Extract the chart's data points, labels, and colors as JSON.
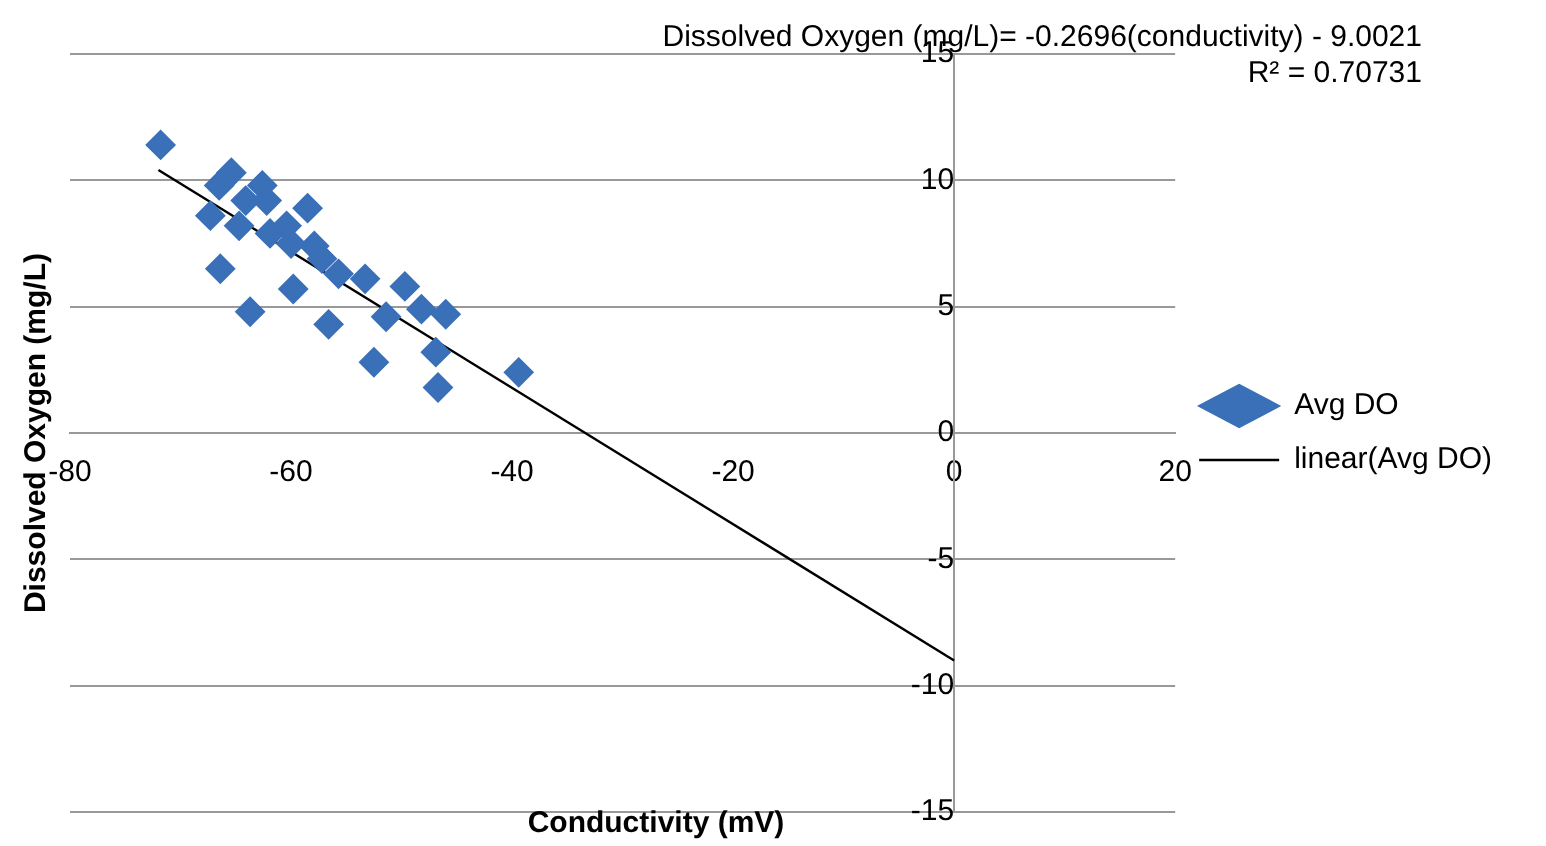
{
  "chart_data": {
    "type": "scatter",
    "xlabel": "Conductivity (mV)",
    "ylabel": "Dissolved Oxygen (mg/L)",
    "annotations": [
      "Dissolved Oxygen (mg/L)= -0.2696(conductivity) - 9.0021",
      "R² = 0.70731"
    ],
    "xlim": [
      -80,
      20
    ],
    "xticks": [
      -80,
      -60,
      -40,
      -20,
      0,
      20
    ],
    "ylim": [
      -15,
      15
    ],
    "yticks": [
      -15,
      -10,
      -5,
      0,
      5,
      10,
      15
    ],
    "grid": "y",
    "legend": "right",
    "series": [
      {
        "name": "Avg DO",
        "type": "scatter",
        "marker": "diamond",
        "color": "#3a70b8",
        "x": [
          -71.8,
          -65.4,
          -66.5,
          -62.6,
          -62.2,
          -64.1,
          -67.3,
          -64.7,
          -58.5,
          -61.9,
          -60.4,
          -60.0,
          -57.9,
          -57.2,
          -55.7,
          -66.4,
          -53.3,
          -49.7,
          -48.2,
          -46.0,
          -51.4,
          -59.8,
          -63.7,
          -56.6,
          -46.9,
          -52.5,
          -46.7,
          -39.4
        ],
        "values": [
          11.4,
          10.3,
          9.8,
          9.8,
          9.2,
          9.2,
          8.6,
          8.2,
          8.9,
          7.9,
          8.2,
          7.5,
          7.4,
          6.9,
          6.3,
          6.5,
          6.1,
          5.8,
          4.9,
          4.7,
          4.6,
          5.7,
          4.8,
          4.3,
          3.2,
          2.8,
          1.8,
          2.4
        ]
      },
      {
        "name": "linear(Avg DO)",
        "type": "line",
        "marker": "none",
        "line_style": "solid",
        "color": "#000000",
        "x": [
          -72,
          0
        ],
        "values": [
          10.41,
          -9.0
        ]
      }
    ]
  }
}
